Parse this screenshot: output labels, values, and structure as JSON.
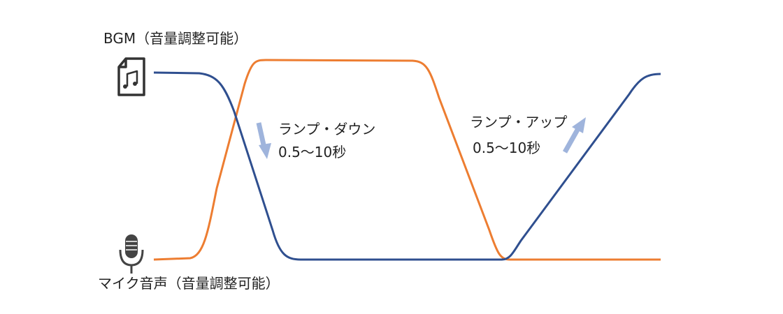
{
  "bgm_label": "BGM（音量調整可能）",
  "mic_label": "マイク音声（音量調整可能）",
  "ramp_down": {
    "title": "ランプ・ダウン",
    "duration": "0.5～10秒"
  },
  "ramp_up": {
    "title": "ランプ・アップ",
    "duration": "0.5～10秒"
  }
}
